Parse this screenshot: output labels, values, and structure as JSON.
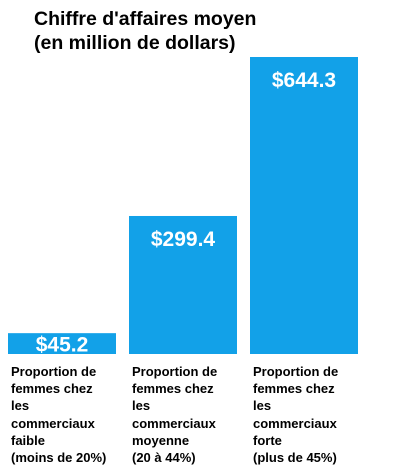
{
  "chart_data": {
    "type": "bar",
    "title": "Chiffre d'affaires moyen\n(en million de dollars)",
    "categories": [
      "Proportion de\nfemmes chez\nles\ncommerciaux\nfaible\n(moins de 20%)",
      "Proportion de\nfemmes chez\nles\ncommerciaux\nmoyenne\n(20 à 44%)",
      "Proportion de\nfemmes chez\nles\ncommerciaux\nforte\n(plus de 45%)"
    ],
    "values": [
      45.2,
      299.4,
      644.3
    ],
    "value_labels": [
      "$45.2",
      "$299.4",
      "$644.3"
    ],
    "xlabel": "",
    "ylabel": "",
    "grid": false,
    "legend": "none",
    "bar_color": "#12A1E8"
  }
}
